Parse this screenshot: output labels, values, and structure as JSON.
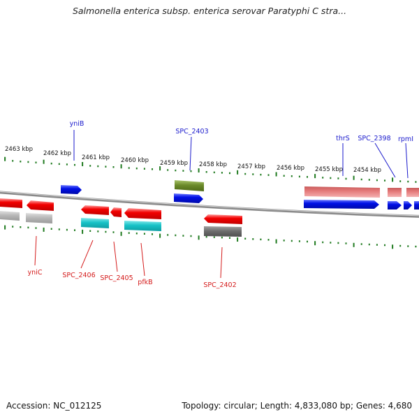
{
  "header": {
    "title": "Salmonella enterica subsp. enterica serovar Paratyphi C stra..."
  },
  "footer": {
    "accession": "Accession: NC_012125",
    "summary": "Topology: circular; Length: 4,833,080 bp; Genes: 4,680"
  },
  "colors": {
    "forward_label": "#1a1acc",
    "reverse_label": "#d41a1a",
    "tick": "#1f7a1f",
    "backbone": "#8a8a8a",
    "gene_red": "#f20000",
    "gene_blue": "#0010e6",
    "gene_salmon": "#e57a7a",
    "gene_cyan": "#17c2c7",
    "gene_olive": "#6b8a2a",
    "gene_gray": "#b8b8b8",
    "gene_darkgray": "#6e6e6e"
  },
  "scale": {
    "unit": "kbp",
    "labels": [
      "2463 kbp",
      "2462 kbp",
      "2461 kbp",
      "2460 kbp",
      "2459 kbp",
      "2458 kbp",
      "2457 kbp",
      "2456 kbp",
      "2455 kbp",
      "2454 kbp"
    ]
  },
  "forward_labels": [
    "yniB",
    "SPC_2403",
    "thrS",
    "SPC_2398",
    "rpmI"
  ],
  "reverse_labels": [
    "yniC",
    "SPC_2406",
    "SPC_2405",
    "pfkB",
    "SPC_2402"
  ]
}
